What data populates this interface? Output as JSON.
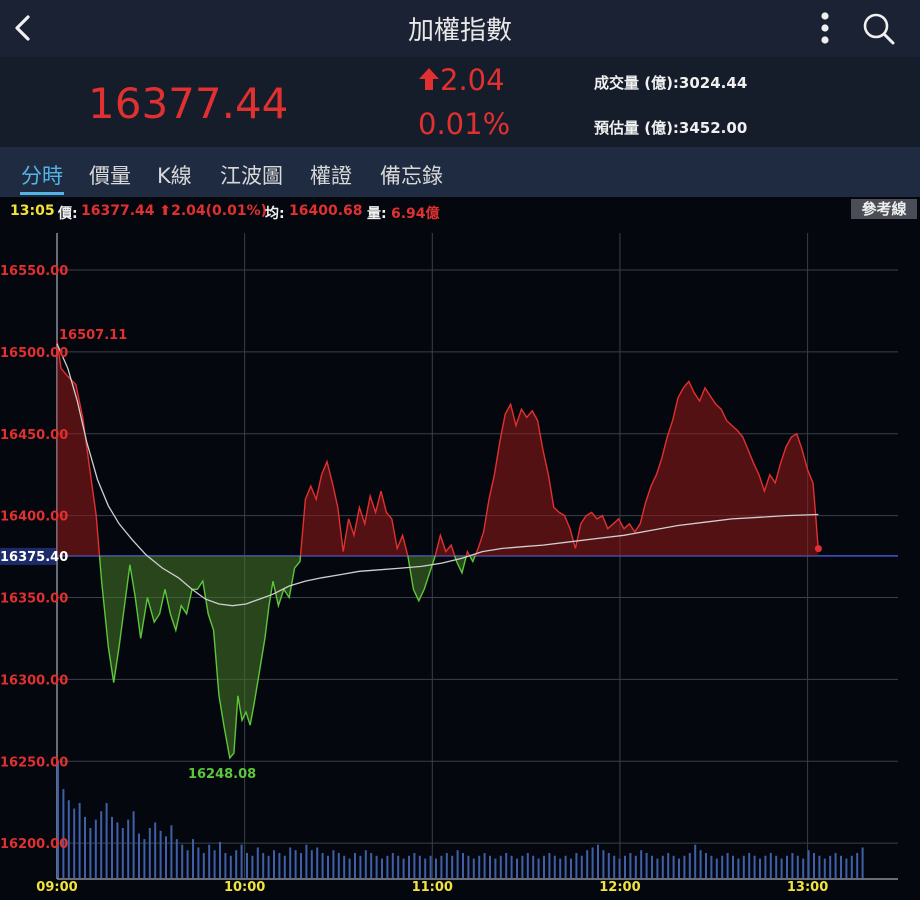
{
  "header": {
    "title": "加權指數",
    "back_icon": "chevron-left-icon",
    "menu_icon": "kebab-icon",
    "search_icon": "search-icon"
  },
  "quote": {
    "price": "16377.44",
    "change": "2.04",
    "change_pct": "0.01%",
    "volume": "成交量 (億):3024.44",
    "estimated": "預估量 (億):3452.00",
    "color": "#e03030"
  },
  "tabs": [
    {
      "label": "分時",
      "active": true
    },
    {
      "label": "價量",
      "active": false
    },
    {
      "label": "K線",
      "active": false
    },
    {
      "label": "江波圖",
      "active": false
    },
    {
      "label": "權證",
      "active": false
    },
    {
      "label": "備忘錄",
      "active": false
    }
  ],
  "info_bar": {
    "time": "13:05",
    "price_label": "價:",
    "price_value": "16377.44 ⬆2.04(0.01%)",
    "avg_label": "均:",
    "avg_value": "16400.68",
    "vol_label": "量:",
    "vol_value": "6.94億",
    "ref_button": "參考線"
  },
  "chart_data": {
    "type": "line",
    "y_ticks": [
      "16550.00",
      "16500.00",
      "16450.00",
      "16400.00",
      "16350.00",
      "16300.00",
      "16250.00",
      "16200.00"
    ],
    "reference_label": "16375.40",
    "reference": 16375.4,
    "ylim": [
      16185,
      16575
    ],
    "x_ticks": [
      "09:00",
      "10:00",
      "11:00",
      "12:00",
      "13:00"
    ],
    "high_label": "16507.11",
    "low_label": "16248.08",
    "colors": {
      "up": "#e03030",
      "down": "#5cc73b",
      "avg": "#cfcfcf",
      "volume": "#3f5fa8",
      "ref": "#3f55c8"
    },
    "price": [
      [
        0,
        16507.1
      ],
      [
        3,
        16490
      ],
      [
        8,
        16485
      ],
      [
        14,
        16480
      ],
      [
        19,
        16460
      ],
      [
        24,
        16430
      ],
      [
        29,
        16400
      ],
      [
        33,
        16360
      ],
      [
        38,
        16320
      ],
      [
        42,
        16298
      ],
      [
        46,
        16320
      ],
      [
        50,
        16345
      ],
      [
        54,
        16370
      ],
      [
        58,
        16350
      ],
      [
        62,
        16325
      ],
      [
        67,
        16350
      ],
      [
        72,
        16335
      ],
      [
        76,
        16340
      ],
      [
        80,
        16355
      ],
      [
        84,
        16340
      ],
      [
        88,
        16330
      ],
      [
        92,
        16345
      ],
      [
        96,
        16340
      ],
      [
        100,
        16355
      ],
      [
        104,
        16355
      ],
      [
        108,
        16360
      ],
      [
        112,
        16340
      ],
      [
        116,
        16330
      ],
      [
        120,
        16290
      ],
      [
        124,
        16270
      ],
      [
        128,
        16252
      ],
      [
        131,
        16255
      ],
      [
        134,
        16290
      ],
      [
        137,
        16275
      ],
      [
        140,
        16280
      ],
      [
        143,
        16272
      ],
      [
        146,
        16285
      ],
      [
        150,
        16305
      ],
      [
        154,
        16325
      ],
      [
        157,
        16345
      ],
      [
        160,
        16360
      ],
      [
        164,
        16345
      ],
      [
        168,
        16355
      ],
      [
        172,
        16350
      ],
      [
        176,
        16368
      ],
      [
        180,
        16372
      ],
      [
        184,
        16410
      ],
      [
        188,
        16418
      ],
      [
        192,
        16410
      ],
      [
        196,
        16425
      ],
      [
        200,
        16433
      ],
      [
        204,
        16420
      ],
      [
        208,
        16405
      ],
      [
        212,
        16378
      ],
      [
        216,
        16398
      ],
      [
        220,
        16388
      ],
      [
        224,
        16405
      ],
      [
        228,
        16395
      ],
      [
        232,
        16412
      ],
      [
        236,
        16402
      ],
      [
        240,
        16415
      ],
      [
        244,
        16402
      ],
      [
        248,
        16398
      ],
      [
        252,
        16380
      ],
      [
        256,
        16388
      ],
      [
        260,
        16375
      ],
      [
        264,
        16355
      ],
      [
        268,
        16348
      ],
      [
        272,
        16355
      ],
      [
        276,
        16365
      ],
      [
        280,
        16375
      ],
      [
        284,
        16388
      ],
      [
        288,
        16378
      ],
      [
        292,
        16382
      ],
      [
        296,
        16372
      ],
      [
        300,
        16365
      ],
      [
        304,
        16378
      ],
      [
        308,
        16372
      ],
      [
        312,
        16380
      ],
      [
        316,
        16390
      ],
      [
        320,
        16410
      ],
      [
        324,
        16425
      ],
      [
        328,
        16445
      ],
      [
        332,
        16462
      ],
      [
        336,
        16468
      ],
      [
        340,
        16455
      ],
      [
        344,
        16465
      ],
      [
        348,
        16460
      ],
      [
        352,
        16464
      ],
      [
        356,
        16458
      ],
      [
        360,
        16440
      ],
      [
        364,
        16425
      ],
      [
        368,
        16405
      ],
      [
        372,
        16402
      ],
      [
        376,
        16400
      ],
      [
        380,
        16392
      ],
      [
        384,
        16380
      ],
      [
        388,
        16395
      ],
      [
        392,
        16400
      ],
      [
        396,
        16402
      ],
      [
        400,
        16398
      ],
      [
        404,
        16400
      ],
      [
        408,
        16392
      ],
      [
        412,
        16395
      ],
      [
        416,
        16398
      ],
      [
        420,
        16392
      ],
      [
        424,
        16395
      ],
      [
        428,
        16390
      ],
      [
        432,
        16395
      ],
      [
        436,
        16408
      ],
      [
        440,
        16418
      ],
      [
        444,
        16425
      ],
      [
        448,
        16435
      ],
      [
        452,
        16448
      ],
      [
        456,
        16458
      ],
      [
        460,
        16472
      ],
      [
        464,
        16478
      ],
      [
        468,
        16482
      ],
      [
        472,
        16475
      ],
      [
        476,
        16470
      ],
      [
        480,
        16478
      ],
      [
        484,
        16473
      ],
      [
        488,
        16468
      ],
      [
        492,
        16465
      ],
      [
        496,
        16458
      ],
      [
        500,
        16455
      ],
      [
        504,
        16452
      ],
      [
        508,
        16448
      ],
      [
        512,
        16440
      ],
      [
        516,
        16432
      ],
      [
        520,
        16425
      ],
      [
        524,
        16415
      ],
      [
        528,
        16425
      ],
      [
        532,
        16420
      ],
      [
        536,
        16432
      ],
      [
        540,
        16442
      ],
      [
        544,
        16448
      ],
      [
        548,
        16450
      ],
      [
        552,
        16440
      ],
      [
        556,
        16428
      ],
      [
        560,
        16420
      ],
      [
        562,
        16400
      ],
      [
        564,
        16378
      ]
    ],
    "average": [
      [
        0,
        16505
      ],
      [
        8,
        16490
      ],
      [
        15,
        16470
      ],
      [
        22,
        16445
      ],
      [
        30,
        16422
      ],
      [
        38,
        16406
      ],
      [
        46,
        16395
      ],
      [
        56,
        16385
      ],
      [
        66,
        16376
      ],
      [
        78,
        16368
      ],
      [
        90,
        16362
      ],
      [
        100,
        16355
      ],
      [
        110,
        16349
      ],
      [
        120,
        16346
      ],
      [
        130,
        16345
      ],
      [
        140,
        16346
      ],
      [
        150,
        16349
      ],
      [
        160,
        16352
      ],
      [
        172,
        16357
      ],
      [
        184,
        16360
      ],
      [
        196,
        16362
      ],
      [
        210,
        16364
      ],
      [
        224,
        16366
      ],
      [
        240,
        16367
      ],
      [
        256,
        16368
      ],
      [
        270,
        16369
      ],
      [
        285,
        16371
      ],
      [
        300,
        16374
      ],
      [
        315,
        16378
      ],
      [
        330,
        16380
      ],
      [
        345,
        16381
      ],
      [
        360,
        16382
      ],
      [
        380,
        16384
      ],
      [
        400,
        16386
      ],
      [
        420,
        16388
      ],
      [
        440,
        16391
      ],
      [
        460,
        16394
      ],
      [
        480,
        16396
      ],
      [
        500,
        16398
      ],
      [
        520,
        16399
      ],
      [
        540,
        16400
      ],
      [
        564,
        16400.68
      ]
    ],
    "volume": [
      42,
      32,
      28,
      25,
      27,
      22,
      18,
      21,
      24,
      27,
      22,
      20,
      18,
      21,
      24,
      16,
      14,
      18,
      20,
      17,
      15,
      19,
      14,
      12,
      10,
      14,
      11,
      9,
      12,
      10,
      13,
      9,
      8,
      10,
      12,
      9,
      8,
      11,
      9,
      8,
      10,
      9,
      8,
      11,
      10,
      9,
      12,
      10,
      11,
      9,
      8,
      10,
      9,
      8,
      7,
      9,
      8,
      10,
      9,
      8,
      7,
      8,
      9,
      8,
      7,
      8,
      9,
      8,
      7,
      8,
      7,
      8,
      9,
      8,
      10,
      9,
      8,
      7,
      8,
      9,
      8,
      7,
      8,
      9,
      8,
      7,
      8,
      9,
      8,
      7,
      8,
      9,
      8,
      7,
      8,
      7,
      9,
      8,
      10,
      11,
      12,
      10,
      9,
      8,
      7,
      8,
      9,
      8,
      10,
      9,
      8,
      7,
      8,
      9,
      8,
      7,
      8,
      9,
      12,
      10,
      9,
      8,
      7,
      8,
      9,
      8,
      7,
      8,
      9,
      8,
      7,
      8,
      9,
      8,
      7,
      8,
      9,
      8,
      7,
      10,
      9,
      8,
      7,
      8,
      9,
      8,
      7,
      8,
      9,
      11
    ],
    "volume_max": 45
  }
}
